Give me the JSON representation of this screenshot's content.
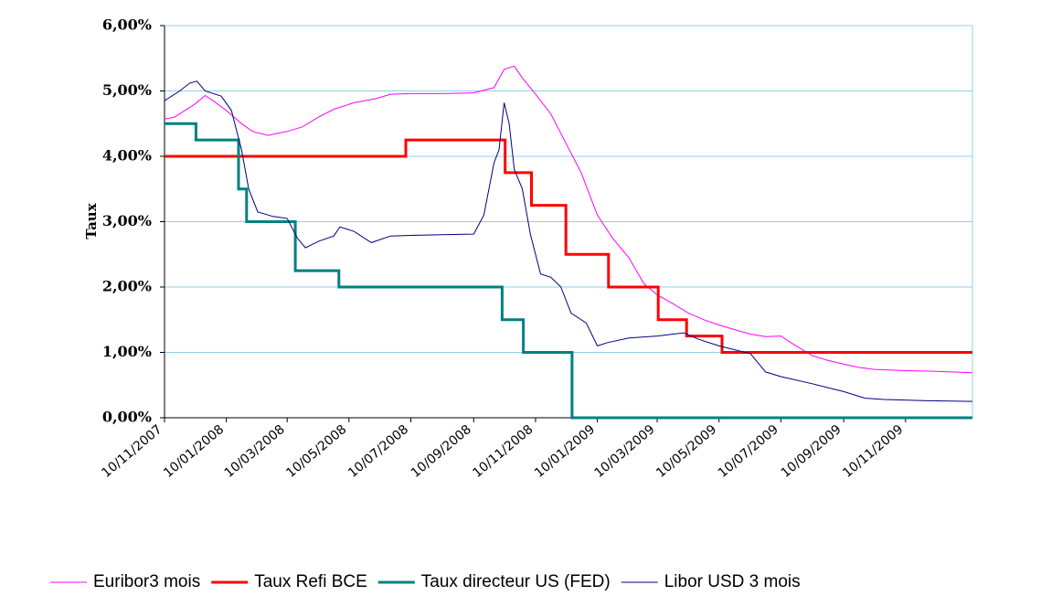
{
  "chart_data": {
    "type": "line",
    "y_label": "Taux",
    "xlim": [
      "2007-11-10",
      "2010-01-15"
    ],
    "xticks": [
      {
        "value": "2007-11-10",
        "label": "10/11/2007"
      },
      {
        "value": "2008-01-10",
        "label": "10/01/2008"
      },
      {
        "value": "2008-03-10",
        "label": "10/03/2008"
      },
      {
        "value": "2008-05-10",
        "label": "10/05/2008"
      },
      {
        "value": "2008-07-10",
        "label": "10/07/2008"
      },
      {
        "value": "2008-09-10",
        "label": "10/09/2008"
      },
      {
        "value": "2008-11-10",
        "label": "10/11/2008"
      },
      {
        "value": "2009-01-10",
        "label": "10/01/2009"
      },
      {
        "value": "2009-03-10",
        "label": "10/03/2009"
      },
      {
        "value": "2009-05-10",
        "label": "10/05/2009"
      },
      {
        "value": "2009-07-10",
        "label": "10/07/2009"
      },
      {
        "value": "2009-09-10",
        "label": "10/09/2009"
      },
      {
        "value": "2009-11-10",
        "label": "10/11/2009"
      }
    ],
    "ylim": [
      0,
      6
    ],
    "yticks": [
      {
        "value": 0,
        "label": "0,00%"
      },
      {
        "value": 1,
        "label": "1,00%"
      },
      {
        "value": 2,
        "label": "2,00%"
      },
      {
        "value": 3,
        "label": "3,00%"
      },
      {
        "value": 4,
        "label": "4,00%"
      },
      {
        "value": 5,
        "label": "5,00%"
      },
      {
        "value": 6,
        "label": "6,00%"
      }
    ],
    "grid": true,
    "legend": "bottom",
    "series": [
      {
        "name": "Euribor3 mois",
        "color": "#ff00ff",
        "width": 1,
        "x": [
          "2007-11-10",
          "2007-11-20",
          "2007-12-10",
          "2007-12-20",
          "2007-12-28",
          "2008-01-10",
          "2008-01-25",
          "2008-02-05",
          "2008-02-20",
          "2008-03-10",
          "2008-03-25",
          "2008-04-10",
          "2008-04-25",
          "2008-05-15",
          "2008-06-05",
          "2008-06-20",
          "2008-07-10",
          "2008-08-10",
          "2008-09-10",
          "2008-09-30",
          "2008-10-10",
          "2008-10-20",
          "2008-10-28",
          "2008-11-10",
          "2008-11-25",
          "2008-12-10",
          "2008-12-25",
          "2009-01-10",
          "2009-01-25",
          "2009-02-10",
          "2009-02-25",
          "2009-03-10",
          "2009-03-25",
          "2009-04-10",
          "2009-04-25",
          "2009-05-10",
          "2009-05-25",
          "2009-06-10",
          "2009-06-25",
          "2009-07-10",
          "2009-07-25",
          "2009-08-10",
          "2009-08-25",
          "2009-09-10",
          "2009-09-25",
          "2009-10-10",
          "2009-10-25",
          "2009-11-10",
          "2009-12-10",
          "2010-01-15"
        ],
        "values": [
          4.57,
          4.6,
          4.8,
          4.93,
          4.85,
          4.7,
          4.5,
          4.38,
          4.32,
          4.38,
          4.45,
          4.6,
          4.72,
          4.82,
          4.88,
          4.95,
          4.96,
          4.96,
          4.97,
          5.05,
          5.33,
          5.38,
          5.2,
          4.95,
          4.65,
          4.2,
          3.75,
          3.1,
          2.75,
          2.45,
          2.05,
          1.88,
          1.75,
          1.6,
          1.5,
          1.42,
          1.35,
          1.28,
          1.24,
          1.25,
          1.1,
          0.95,
          0.88,
          0.82,
          0.77,
          0.74,
          0.73,
          0.72,
          0.71,
          0.69
        ]
      },
      {
        "name": "Taux Refi BCE",
        "color": "#ff0000",
        "width": 3,
        "x": [
          "2007-11-10",
          "2008-07-05",
          "2008-07-05",
          "2008-10-11",
          "2008-10-11",
          "2008-11-06",
          "2008-11-06",
          "2008-12-10",
          "2008-12-10",
          "2009-01-21",
          "2009-01-21",
          "2009-03-11",
          "2009-03-11",
          "2009-04-08",
          "2009-04-08",
          "2009-05-13",
          "2009-05-13",
          "2010-01-15"
        ],
        "values": [
          4,
          4,
          4.25,
          4.25,
          3.75,
          3.75,
          3.25,
          3.25,
          2.5,
          2.5,
          2,
          2,
          1.5,
          1.5,
          1.25,
          1.25,
          1,
          1
        ]
      },
      {
        "name": "Taux directeur US (FED)",
        "color": "#008080",
        "width": 3,
        "x": [
          "2007-11-10",
          "2007-12-11",
          "2007-12-11",
          "2008-01-22",
          "2008-01-22",
          "2008-01-30",
          "2008-01-30",
          "2008-03-18",
          "2008-03-18",
          "2008-04-30",
          "2008-04-30",
          "2008-10-08",
          "2008-10-08",
          "2008-10-29",
          "2008-10-29",
          "2008-12-16",
          "2008-12-16",
          "2010-01-15"
        ],
        "values": [
          4.5,
          4.5,
          4.25,
          4.25,
          3.5,
          3.5,
          3,
          3,
          2.25,
          2.25,
          2,
          2,
          1.5,
          1.5,
          1,
          1,
          0,
          0
        ]
      },
      {
        "name": "Libor USD 3 mois",
        "color": "#000080",
        "width": 1,
        "x": [
          "2007-11-10",
          "2007-11-25",
          "2007-12-05",
          "2007-12-12",
          "2007-12-20",
          "2008-01-05",
          "2008-01-15",
          "2008-01-25",
          "2008-02-01",
          "2008-02-10",
          "2008-02-25",
          "2008-03-10",
          "2008-03-20",
          "2008-03-28",
          "2008-04-10",
          "2008-04-25",
          "2008-05-01",
          "2008-05-15",
          "2008-06-01",
          "2008-06-20",
          "2008-07-10",
          "2008-08-10",
          "2008-09-10",
          "2008-09-20",
          "2008-09-30",
          "2008-10-05",
          "2008-10-10",
          "2008-10-15",
          "2008-10-20",
          "2008-10-28",
          "2008-11-05",
          "2008-11-15",
          "2008-11-25",
          "2008-12-05",
          "2008-12-15",
          "2008-12-30",
          "2009-01-10",
          "2009-01-20",
          "2009-02-10",
          "2009-03-10",
          "2009-04-05",
          "2009-04-20",
          "2009-05-10",
          "2009-06-10",
          "2009-06-25",
          "2009-07-10",
          "2009-08-10",
          "2009-09-10",
          "2009-10-01",
          "2009-10-20",
          "2009-12-01",
          "2010-01-15"
        ],
        "values": [
          4.85,
          5.0,
          5.12,
          5.15,
          5.0,
          4.92,
          4.7,
          4.1,
          3.5,
          3.15,
          3.08,
          3.05,
          2.75,
          2.6,
          2.7,
          2.78,
          2.92,
          2.85,
          2.68,
          2.78,
          2.79,
          2.8,
          2.81,
          3.1,
          3.9,
          4.1,
          4.82,
          4.5,
          3.8,
          3.5,
          2.8,
          2.2,
          2.15,
          2.0,
          1.6,
          1.45,
          1.1,
          1.15,
          1.22,
          1.25,
          1.3,
          1.2,
          1.1,
          0.98,
          0.7,
          0.63,
          0.52,
          0.4,
          0.3,
          0.28,
          0.26,
          0.25
        ]
      }
    ]
  }
}
